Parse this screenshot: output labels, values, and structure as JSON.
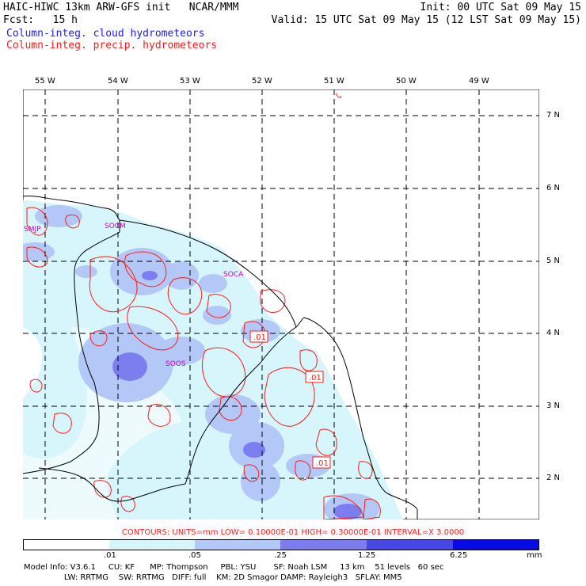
{
  "header": {
    "line1_left": "HAIC-HIWC 13km ARW-GFS init   NCAR/MMM",
    "line1_right": "Init: 00 UTC Sat 09 May 15",
    "line2_left": "Fcst:   15 h",
    "line2_right": "Valid: 15 UTC Sat 09 May 15 (12 LST Sat 09 May 15)",
    "line3": "Column-integ. cloud hydrometeors",
    "line4": "Column-integ. precip. hydrometeors"
  },
  "map": {
    "lon_labels": [
      "55 W",
      "54 W",
      "53 W",
      "52 W",
      "51 W",
      "50 W",
      "49 W"
    ],
    "lat_labels": [
      "7 N",
      "6 N",
      "5 N",
      "4 N",
      "3 N",
      "2 N"
    ],
    "station_labels": [
      "SMJP",
      "SOCM",
      "SOCA",
      "SOOS"
    ],
    "contour_labels": [
      ".01",
      ".01",
      ".01"
    ]
  },
  "colorbar": {
    "contours_text": "CONTOURS:  UNITS=mm  LOW= 0.10000E-01  HIGH= 0.30000E-01  INTERVAL=X  3.0000",
    "ticks": [
      ".01",
      ".05",
      ".25",
      "1.25",
      "6.25"
    ],
    "unit": "mm",
    "colors": [
      "#ffffff",
      "#d7f6fb",
      "#b3c8f7",
      "#7c7ef0",
      "#4747e6",
      "#0a0ae6"
    ]
  },
  "footer": {
    "line1": "Model Info: V3.6.1     CU: KF      MP: Thompson     PBL: YSU       SF: Noah LSM     13 km    51 levels   60 sec",
    "line2": "                LW: RRTMG    SW: RRTMG   DIFF: full    KM: 2D Smagor DAMP: Rayleigh3   SFLAY: MM5"
  }
}
